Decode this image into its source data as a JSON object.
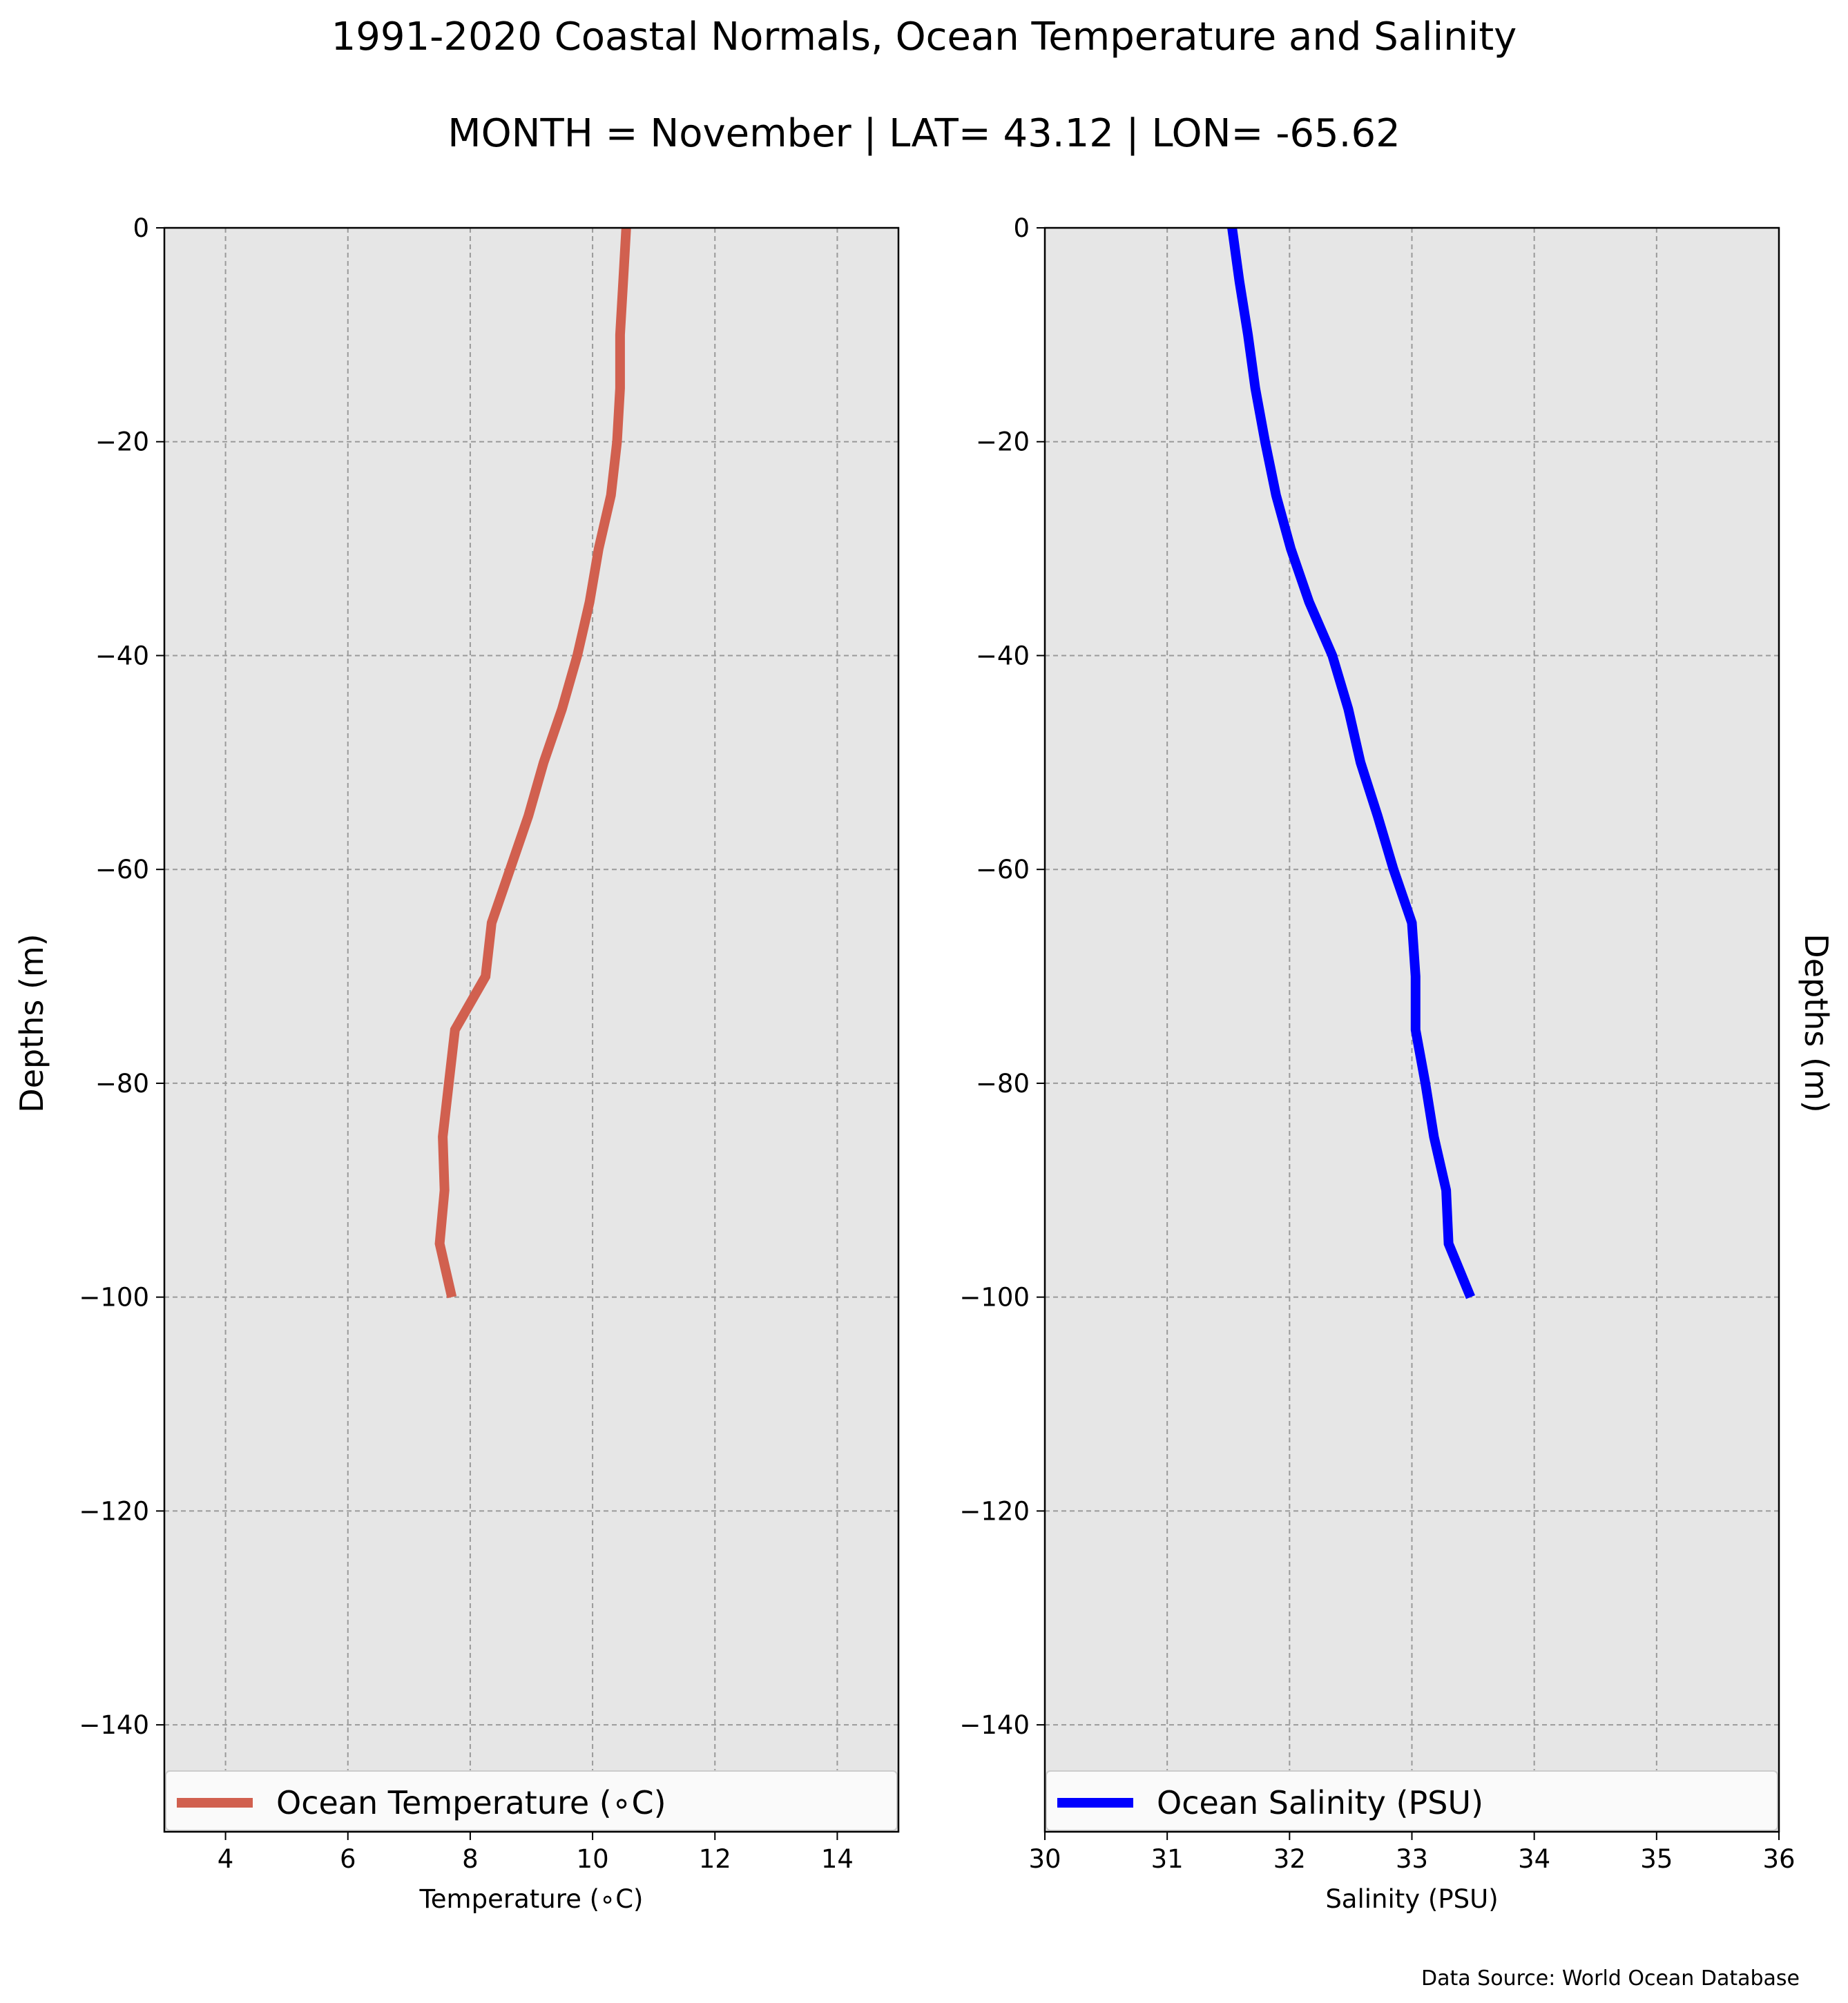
{
  "title": "1991-2020 Coastal Normals, Ocean Temperature and Salinity",
  "subtitle": "MONTH = November | LAT= 43.12 | LON= -65.62",
  "source": "Data Source: World Ocean Database",
  "chart_data": [
    {
      "type": "line",
      "xlabel": "Temperature (∘C)",
      "ylabel": "Depths (m)",
      "xlim": [
        3,
        15
      ],
      "ylim": [
        -150,
        0
      ],
      "xticks": [
        4,
        6,
        8,
        10,
        12,
        14
      ],
      "yticks": [
        0,
        -20,
        -40,
        -60,
        -80,
        -100,
        -120,
        -140
      ],
      "grid": true,
      "legend": "bottom",
      "series": [
        {
          "name": "Ocean Temperature (∘C)",
          "color": "#d1604f",
          "x": [
            10.55,
            10.5,
            10.45,
            10.45,
            10.4,
            10.3,
            10.1,
            9.95,
            9.75,
            9.5,
            9.2,
            8.95,
            8.65,
            8.35,
            8.25,
            7.75,
            7.65,
            7.55,
            7.58,
            7.5,
            7.7
          ],
          "y": [
            0,
            -5,
            -10,
            -15,
            -20,
            -25,
            -30,
            -35,
            -40,
            -45,
            -50,
            -55,
            -60,
            -65,
            -70,
            -75,
            -80,
            -85,
            -90,
            -95,
            -100
          ]
        }
      ]
    },
    {
      "type": "line",
      "xlabel": "Salinity (PSU)",
      "ylabel": "Depths (m)",
      "xlim": [
        30,
        36
      ],
      "ylim": [
        -150,
        0
      ],
      "xticks": [
        30,
        31,
        32,
        33,
        34,
        35,
        36
      ],
      "yticks": [
        0,
        -20,
        -40,
        -60,
        -80,
        -100,
        -120,
        -140
      ],
      "grid": true,
      "legend": "bottom",
      "series": [
        {
          "name": "Ocean Salinity (PSU)",
          "color": "#0000ff",
          "x": [
            31.53,
            31.59,
            31.66,
            31.72,
            31.8,
            31.89,
            32.01,
            32.16,
            32.35,
            32.48,
            32.58,
            32.72,
            32.85,
            33.0,
            33.03,
            33.03,
            33.11,
            33.18,
            33.28,
            33.3,
            33.48
          ],
          "y": [
            0,
            -5,
            -10,
            -15,
            -20,
            -25,
            -30,
            -35,
            -40,
            -45,
            -50,
            -55,
            -60,
            -65,
            -70,
            -75,
            -80,
            -85,
            -90,
            -95,
            -100
          ]
        }
      ]
    }
  ]
}
